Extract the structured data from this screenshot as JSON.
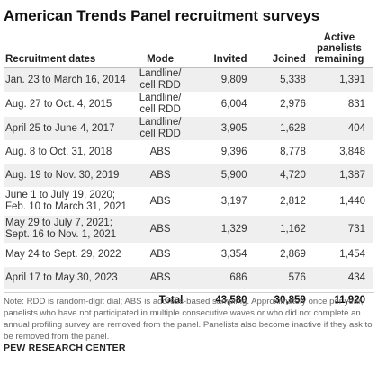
{
  "title": "American Trends Panel recruitment surveys",
  "columns": {
    "dates": "Recruitment dates",
    "mode": "Mode",
    "invited": "Invited",
    "joined": "Joined",
    "active": [
      "Active",
      "panelists",
      "remaining"
    ]
  },
  "rows": [
    {
      "dates": [
        "Jan. 23 to March 16, 2014"
      ],
      "mode": [
        "Landline/",
        "cell RDD"
      ],
      "invited": "9,809",
      "joined": "5,338",
      "active": "1,391"
    },
    {
      "dates": [
        "Aug. 27 to Oct. 4, 2015"
      ],
      "mode": [
        "Landline/",
        "cell RDD"
      ],
      "invited": "6,004",
      "joined": "2,976",
      "active": "831"
    },
    {
      "dates": [
        "April 25 to June 4, 2017"
      ],
      "mode": [
        "Landline/",
        "cell RDD"
      ],
      "invited": "3,905",
      "joined": "1,628",
      "active": "404"
    },
    {
      "dates": [
        "Aug. 8 to Oct. 31, 2018"
      ],
      "mode": [
        "ABS"
      ],
      "invited": "9,396",
      "joined": "8,778",
      "active": "3,848"
    },
    {
      "dates": [
        "Aug. 19 to Nov. 30, 2019"
      ],
      "mode": [
        "ABS"
      ],
      "invited": "5,900",
      "joined": "4,720",
      "active": "1,387"
    },
    {
      "dates": [
        "June 1 to July 19, 2020;",
        "Feb. 10 to March 31, 2021"
      ],
      "mode": [
        "ABS"
      ],
      "invited": "3,197",
      "joined": "2,812",
      "active": "1,440"
    },
    {
      "dates": [
        "May 29 to July 7, 2021;",
        "Sept. 16 to Nov. 1, 2021"
      ],
      "mode": [
        "ABS"
      ],
      "invited": "1,329",
      "joined": "1,162",
      "active": "731"
    },
    {
      "dates": [
        "May 24 to Sept. 29, 2022"
      ],
      "mode": [
        "ABS"
      ],
      "invited": "3,354",
      "joined": "2,869",
      "active": "1,454"
    },
    {
      "dates": [
        "April 17 to May 30, 2023"
      ],
      "mode": [
        "ABS"
      ],
      "invited": "686",
      "joined": "576",
      "active": "434"
    }
  ],
  "total": {
    "label": "Total",
    "invited": "43,580",
    "joined": "30,859",
    "active": "11,920"
  },
  "note": "Note: RDD is random-digit dial; ABS is address-based sampling. Approximately once per year, panelists who have not participated in multiple consecutive waves or who did not complete an annual profiling survey are removed from the panel. Panelists also become inactive if they ask to be removed from the panel.",
  "source": "PEW RESEARCH CENTER",
  "colors": {
    "stripe": "#efefef",
    "text": "#333333",
    "title": "#111111",
    "note": "#666666"
  }
}
